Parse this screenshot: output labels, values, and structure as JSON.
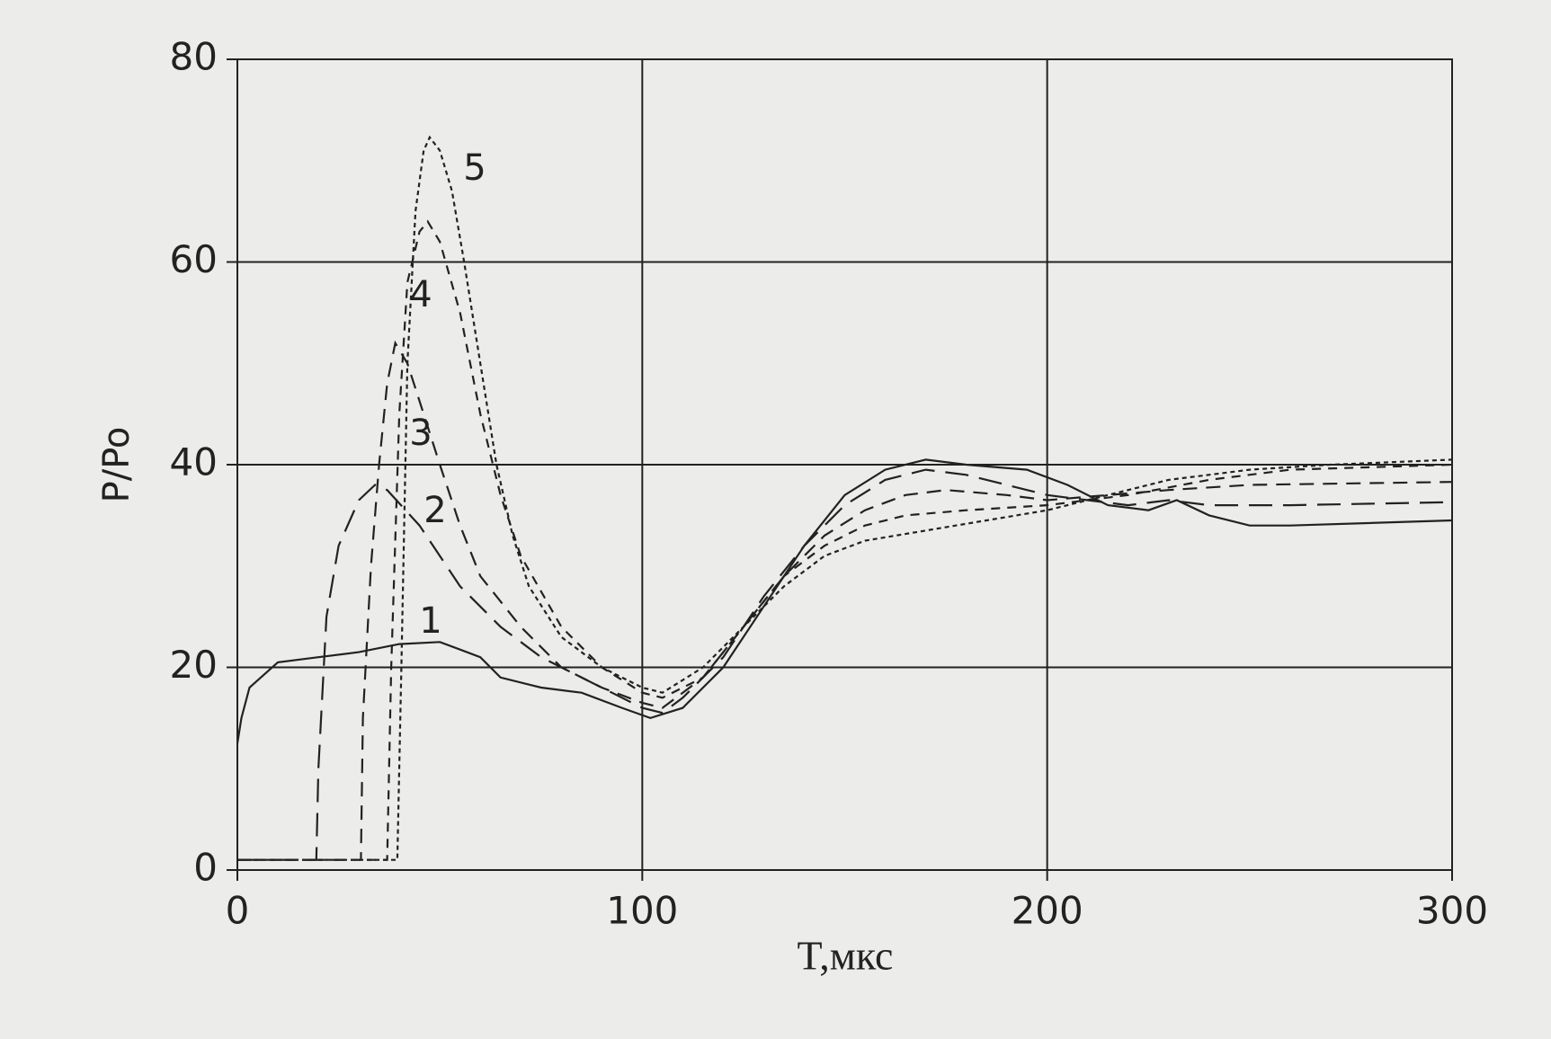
{
  "chart_data": {
    "type": "line",
    "xlabel": "T,мкс",
    "ylabel": "P/Po",
    "xlim": [
      0,
      300
    ],
    "xticks": [
      0,
      100,
      200,
      300
    ],
    "ylim": [
      0,
      80
    ],
    "yticks": [
      0,
      20,
      40,
      60,
      80
    ],
    "grid": true,
    "series": [
      {
        "name": "1",
        "color": "#222222",
        "dash": "solid",
        "x": [
          0,
          1,
          3,
          10,
          20,
          30,
          40,
          50,
          60,
          65,
          75,
          85,
          95,
          102,
          110,
          120,
          130,
          140,
          150,
          160,
          170,
          180,
          195,
          205,
          215,
          225,
          232,
          240,
          250,
          260,
          300
        ],
        "values": [
          12.5,
          15,
          18,
          20.5,
          21,
          21.5,
          22.3,
          22.5,
          21,
          19,
          18,
          17.5,
          16,
          15,
          16,
          20,
          26,
          32,
          37,
          39.5,
          40.5,
          40,
          39.5,
          38,
          36,
          35.5,
          36.5,
          35,
          34,
          34,
          34.5
        ]
      },
      {
        "name": "2",
        "color": "#222222",
        "dash": "long",
        "x": [
          0,
          19.5,
          20,
          22,
          25,
          30,
          34,
          37,
          45,
          55,
          65,
          75,
          85,
          95,
          100,
          105,
          110,
          120,
          130,
          140,
          150,
          160,
          170,
          180,
          190,
          200,
          210,
          220,
          230,
          240,
          260,
          300
        ],
        "values": [
          1,
          1,
          10,
          25,
          32,
          36.5,
          38,
          37.5,
          34,
          28,
          24,
          21,
          19,
          17,
          16,
          15.5,
          17,
          21,
          27,
          32,
          36,
          38.5,
          39.5,
          39,
          38,
          37,
          36.5,
          36,
          36.5,
          36,
          36,
          36.3
        ]
      },
      {
        "name": "3",
        "color": "#222222",
        "dash": "medium",
        "x": [
          0,
          30.5,
          31,
          33,
          35,
          37,
          39,
          42,
          46,
          50,
          55,
          60,
          70,
          80,
          90,
          100,
          105,
          115,
          125,
          135,
          145,
          155,
          165,
          175,
          190,
          200,
          215,
          230,
          250,
          300
        ],
        "values": [
          1,
          1,
          15,
          30,
          40,
          48,
          52,
          50,
          45,
          40,
          34,
          29,
          24,
          20,
          18,
          16.5,
          16,
          19,
          24,
          29,
          33,
          35.5,
          37,
          37.5,
          37,
          36.5,
          37,
          37.5,
          38,
          38.3
        ]
      },
      {
        "name": "4",
        "color": "#222222",
        "dash": "short",
        "x": [
          0,
          37,
          38,
          40,
          42,
          45,
          47,
          50,
          55,
          60,
          65,
          70,
          80,
          90,
          100,
          105,
          115,
          125,
          135,
          145,
          155,
          165,
          180,
          200,
          220,
          240,
          260,
          300
        ],
        "values": [
          1,
          1,
          20,
          45,
          58,
          63,
          64,
          62,
          55,
          45,
          37,
          31,
          24,
          20,
          17.5,
          17,
          19,
          24,
          29,
          32,
          34,
          35,
          35.5,
          36,
          37,
          38.5,
          39.5,
          40
        ]
      },
      {
        "name": "5",
        "color": "#222222",
        "dash": "dotted",
        "x": [
          0,
          39.5,
          40.5,
          42,
          44,
          46,
          47.5,
          50,
          53,
          56,
          60,
          64,
          68,
          72,
          80,
          90,
          100,
          105,
          115,
          125,
          135,
          145,
          155,
          170,
          185,
          200,
          215,
          230,
          250,
          270,
          300
        ],
        "values": [
          1,
          1,
          20,
          50,
          65,
          71,
          72.3,
          71,
          67,
          60,
          50,
          40,
          33,
          28,
          23,
          20,
          18,
          17.5,
          20,
          24,
          28,
          31,
          32.5,
          33.5,
          34.5,
          35.5,
          37,
          38.5,
          39.5,
          40,
          40.5
        ]
      }
    ]
  }
}
